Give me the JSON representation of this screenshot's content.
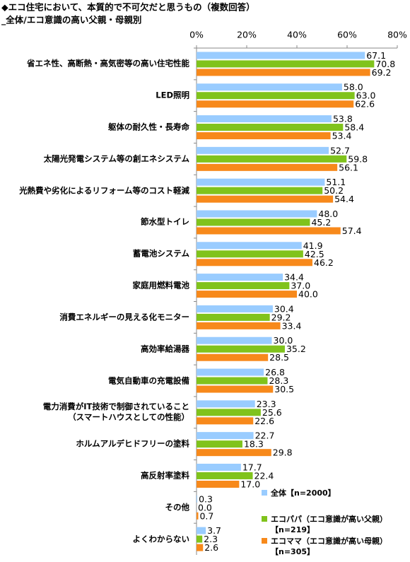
{
  "chart_data": {
    "type": "hbar",
    "title": "◆エコ住宅において、本質的で不可欠だと思うもの（複数回答）",
    "subtitle": "_全体/エコ意識の高い父親・母親別",
    "categories": [
      "省エネ性、高断熱・高気密等の高い住宅性能",
      "LED照明",
      "躯体の耐久性・長寿命",
      "太陽光発電システム等の創エネシステム",
      "光熱費や劣化によるリフォーム等のコスト軽減",
      "節水型トイレ",
      "蓄電池システム",
      "家庭用燃料電池",
      "消費エネルギーの見える化モニター",
      "高効率給湯器",
      "電気自動車の充電設備",
      "電力消費がIT技術で制御されていること\n（スマートハウスとしての性能）",
      "ホルムアルデヒドフリーの塗料",
      "高反射率塗料",
      "その他",
      "よくわからない"
    ],
    "series": [
      {
        "name": "全体【n=2000】",
        "color": "#99ccff",
        "values": [
          67.1,
          58.0,
          53.8,
          52.7,
          51.1,
          48.0,
          41.9,
          34.4,
          30.4,
          30.0,
          26.8,
          23.3,
          22.7,
          17.7,
          0.3,
          3.7
        ],
        "value_labels": [
          "67.1",
          "58.0",
          "53.8",
          "52.7",
          "51.1",
          "48.0",
          "41.9",
          "34.4",
          "30.4",
          "30.0",
          "26.8",
          "23.3",
          "22.7",
          "17.7",
          "0.3",
          "3.7"
        ]
      },
      {
        "name": "エコパパ（エコ意識が高い父親）\n【n=219】",
        "color": "#80c31c",
        "values": [
          70.8,
          63.0,
          58.4,
          59.8,
          50.2,
          45.2,
          42.5,
          37.0,
          29.2,
          35.2,
          28.3,
          25.6,
          18.3,
          22.4,
          0.0,
          2.3
        ],
        "value_labels": [
          "70.8",
          "63.0",
          "58.4",
          "59.8",
          "50.2",
          "45.2",
          "42.5",
          "37.0",
          "29.2",
          "35.2",
          "28.3",
          "25.6",
          "18.3",
          "22.4",
          "0.0",
          "2.3"
        ]
      },
      {
        "name": "エコママ（エコ意識が高い母親）\n【n=305】",
        "color": "#f7891b",
        "values": [
          69.2,
          62.6,
          53.4,
          56.1,
          54.4,
          57.4,
          46.2,
          40.0,
          33.4,
          28.5,
          30.5,
          22.6,
          29.8,
          17.0,
          0.7,
          2.6
        ],
        "value_labels": [
          "69.2",
          "62.6",
          "53.4",
          "56.1",
          "54.4",
          "57.4",
          "46.2",
          "40.0",
          "33.4",
          "28.5",
          "30.5",
          "22.6",
          "29.8",
          "17.0",
          "0.7",
          "2.6"
        ]
      }
    ],
    "xlim": [
      0,
      80
    ],
    "xticks": [
      {
        "value": 0,
        "label": "0%"
      },
      {
        "value": 20,
        "label": "20%"
      },
      {
        "value": 40,
        "label": "40%"
      },
      {
        "value": 60,
        "label": "60%"
      },
      {
        "value": 80,
        "label": "80%"
      }
    ],
    "grid": false,
    "legend": "lower right"
  }
}
